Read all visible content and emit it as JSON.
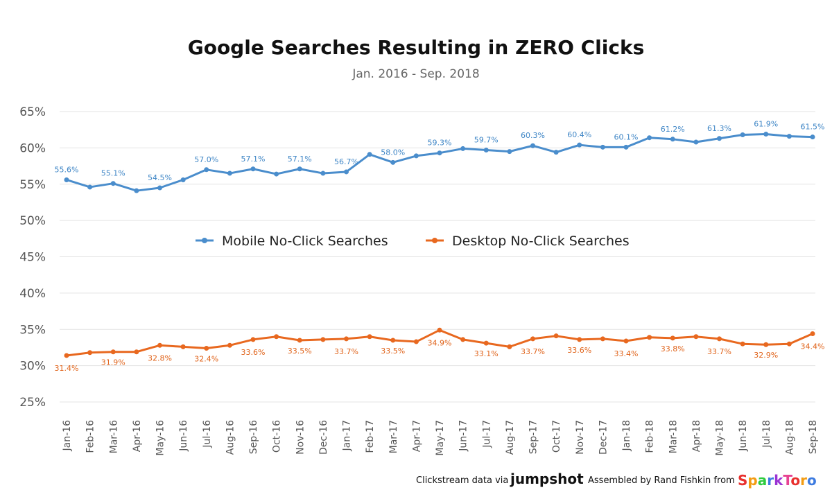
{
  "chart_data": {
    "type": "line",
    "title": "Google Searches Resulting in ZERO Clicks",
    "subtitle": "Jan. 2016 - Sep. 2018",
    "xlabel": "",
    "ylabel": "",
    "ylim": [
      25,
      65
    ],
    "y_tick_labels": [
      "65%",
      "60%",
      "55%",
      "50%",
      "45%",
      "40%",
      "35%",
      "30%",
      "25%"
    ],
    "y_tick_values": [
      65,
      60,
      55,
      50,
      45,
      40,
      35,
      30,
      25
    ],
    "grid": "horizontal",
    "legend_position": "center",
    "categories": [
      "Jan-16",
      "Feb-16",
      "Mar-16",
      "Apr-16",
      "May-16",
      "Jun-16",
      "Jul-16",
      "Aug-16",
      "Sep-16",
      "Oct-16",
      "Nov-16",
      "Dec-16",
      "Jan-17",
      "Feb-17",
      "Mar-17",
      "Apr-17",
      "May-17",
      "Jun-17",
      "Jul-17",
      "Aug-17",
      "Sep-17",
      "Oct-17",
      "Nov-17",
      "Dec-17",
      "Jan-18",
      "Feb-18",
      "Mar-18",
      "Apr-18",
      "May-18",
      "Jun-18",
      "Jul-18",
      "Aug-18",
      "Sep-18"
    ],
    "series": [
      {
        "name": "Mobile No-Click Searches",
        "color": "#4a8dcc",
        "values": [
          55.6,
          54.6,
          55.1,
          54.1,
          54.5,
          55.6,
          57.0,
          56.5,
          57.1,
          56.4,
          57.1,
          56.5,
          56.7,
          59.1,
          58.0,
          58.9,
          59.3,
          59.9,
          59.7,
          59.5,
          60.3,
          59.4,
          60.4,
          60.1,
          60.1,
          61.4,
          61.2,
          60.8,
          61.3,
          61.8,
          61.9,
          61.6,
          61.5
        ],
        "labels": {
          "0": "55.6%",
          "2": "55.1%",
          "4": "54.5%",
          "6": "57.0%",
          "8": "57.1%",
          "10": "57.1%",
          "12": "56.7%",
          "14": "58.0%",
          "16": "59.3%",
          "18": "59.7%",
          "20": "60.3%",
          "22": "60.4%",
          "24": "60.1%",
          "26": "61.2%",
          "28": "61.3%",
          "30": "61.9%",
          "32": "61.5%"
        }
      },
      {
        "name": "Desktop No-Click Searches",
        "color": "#e8681f",
        "values": [
          31.4,
          31.8,
          31.9,
          31.9,
          32.8,
          32.6,
          32.4,
          32.8,
          33.6,
          34.0,
          33.5,
          33.6,
          33.7,
          34.0,
          33.5,
          33.3,
          34.9,
          33.6,
          33.1,
          32.6,
          33.7,
          34.1,
          33.6,
          33.7,
          33.4,
          33.9,
          33.8,
          34.0,
          33.7,
          33.0,
          32.9,
          33.0,
          34.4
        ],
        "labels": {
          "0": "31.4%",
          "2": "31.9%",
          "4": "32.8%",
          "6": "32.4%",
          "8": "33.6%",
          "10": "33.5%",
          "12": "33.7%",
          "14": "33.5%",
          "16": "34.9%",
          "18": "33.1%",
          "20": "33.7%",
          "22": "33.6%",
          "24": "33.4%",
          "26": "33.8%",
          "28": "33.7%",
          "30": "32.9%",
          "32": "34.4%"
        }
      }
    ]
  },
  "footer": {
    "clickstream_text": "Clickstream data via",
    "jumpshot": "jumpshot",
    "assembled_text": "Assembled by Rand Fishkin from",
    "sparktoro": "SparkToro"
  }
}
